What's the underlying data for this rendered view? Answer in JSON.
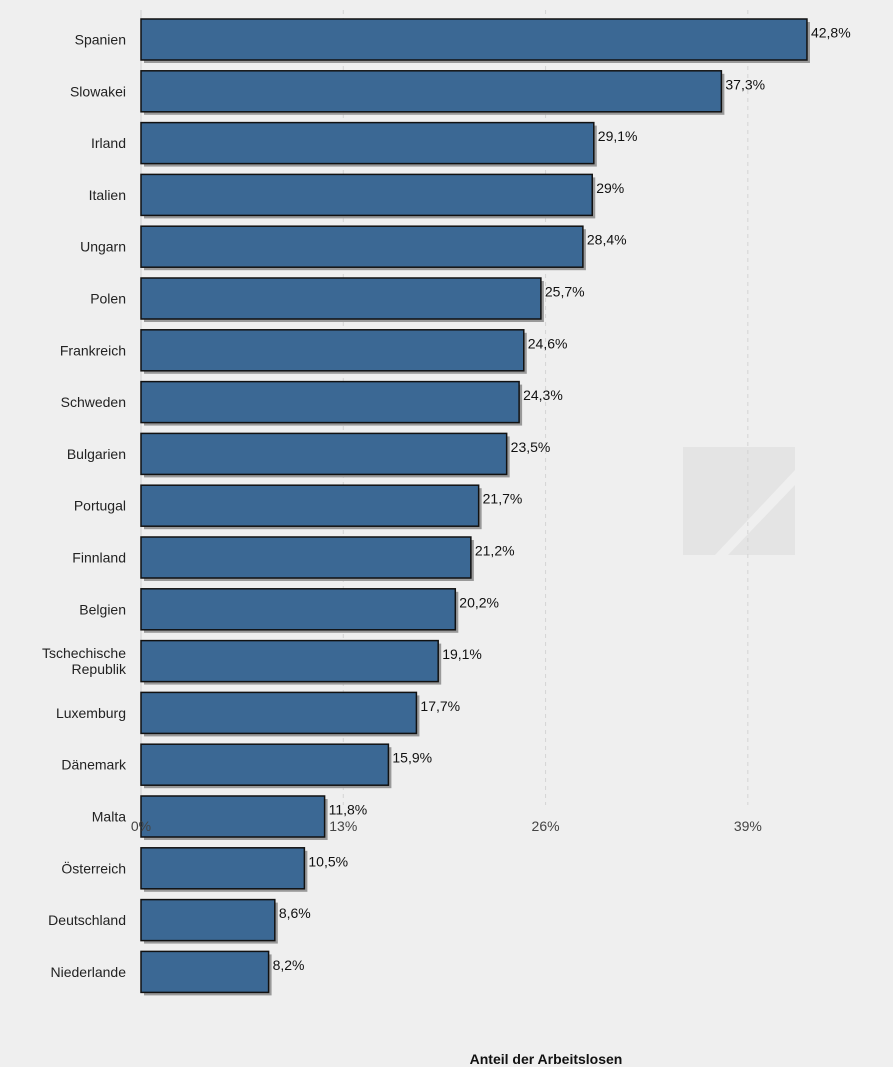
{
  "chart_data": {
    "type": "bar",
    "orientation": "horizontal",
    "categories": [
      [
        "Spanien"
      ],
      [
        "Slowakei"
      ],
      [
        "Irland"
      ],
      [
        "Italien"
      ],
      [
        "Ungarn"
      ],
      [
        "Polen"
      ],
      [
        "Frankreich"
      ],
      [
        "Schweden"
      ],
      [
        "Bulgarien"
      ],
      [
        "Portugal"
      ],
      [
        "Finnland"
      ],
      [
        "Belgien"
      ],
      [
        "Tschechische",
        "Republik"
      ],
      [
        "Luxemburg"
      ],
      [
        "Dänemark"
      ],
      [
        "Malta"
      ],
      [
        "Österreich"
      ],
      [
        "Deutschland"
      ],
      [
        "Niederlande"
      ]
    ],
    "values": [
      42.8,
      37.3,
      29.1,
      29.0,
      28.4,
      25.7,
      24.6,
      24.3,
      23.5,
      21.7,
      21.2,
      20.2,
      19.1,
      17.7,
      15.9,
      11.8,
      10.5,
      8.6,
      8.2
    ],
    "value_labels": [
      "42,8%",
      "37,3%",
      "29,1%",
      "29%",
      "28,4%",
      "25,7%",
      "24,6%",
      "24,3%",
      "23,5%",
      "21,7%",
      "21,2%",
      "20,2%",
      "19,1%",
      "17,7%",
      "15,9%",
      "11,8%",
      "10,5%",
      "8,6%",
      "8,2%"
    ],
    "xticks": [
      0,
      13,
      26,
      39
    ],
    "xtick_labels": [
      "0%",
      "13%",
      "26%",
      "39%"
    ],
    "xlim": [
      0,
      47
    ],
    "xlabel": "Anteil der Arbeitslosen",
    "ylabel": "",
    "title": "",
    "grid": "vertical dashed",
    "colors": {
      "bar": "#3b6894",
      "bar_border": "#111111",
      "shadow": "#999999",
      "background": "#efefef",
      "grid": "#d4d4d4"
    }
  }
}
